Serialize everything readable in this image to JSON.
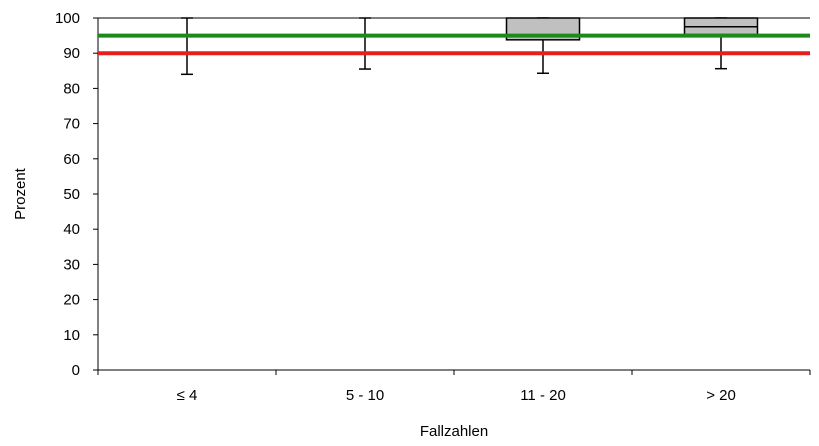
{
  "chart_data": {
    "type": "box",
    "title": "",
    "xlabel": "Fallzahlen",
    "ylabel": "Prozent",
    "ylim": [
      0,
      100
    ],
    "yticks": [
      0,
      10,
      20,
      30,
      40,
      50,
      60,
      70,
      80,
      90,
      100
    ],
    "ytick_labels": [
      "0",
      "10",
      "20",
      "30",
      "40",
      "50",
      "60",
      "70",
      "80",
      "90",
      "100"
    ],
    "categories": [
      "≤ 4",
      "5 - 10",
      "11 - 20",
      "> 20"
    ],
    "boxes": [
      {
        "whisker_low": 84,
        "q1": 100,
        "median": 100,
        "q3": 100,
        "whisker_high": 100
      },
      {
        "whisker_low": 85.5,
        "q1": 100,
        "median": 100,
        "q3": 100,
        "whisker_high": 100
      },
      {
        "whisker_low": 84.3,
        "q1": 93.8,
        "median": 100,
        "q3": 100,
        "whisker_high": 100
      },
      {
        "whisker_low": 85.6,
        "q1": 95.3,
        "median": 97.5,
        "q3": 100,
        "whisker_high": 100
      }
    ],
    "reference_lines": [
      {
        "value": 95,
        "color": "#1a8a1a"
      },
      {
        "value": 90,
        "color": "#e8201c"
      }
    ],
    "box_fill": "#c0c0c0",
    "grid": false
  }
}
